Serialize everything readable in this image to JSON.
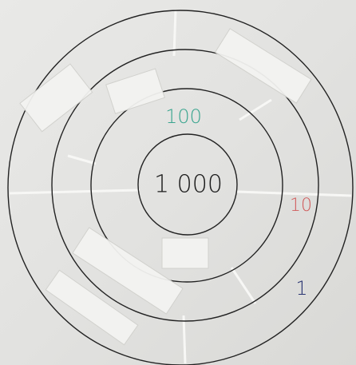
{
  "labels": [
    {
      "text": "100",
      "color": "#3aa58f"
    },
    {
      "text": "1 000",
      "color": "#1a1a1a"
    },
    {
      "text": "10",
      "color": "#d05a5a"
    },
    {
      "text": "1",
      "color": "#2a3572"
    }
  ]
}
